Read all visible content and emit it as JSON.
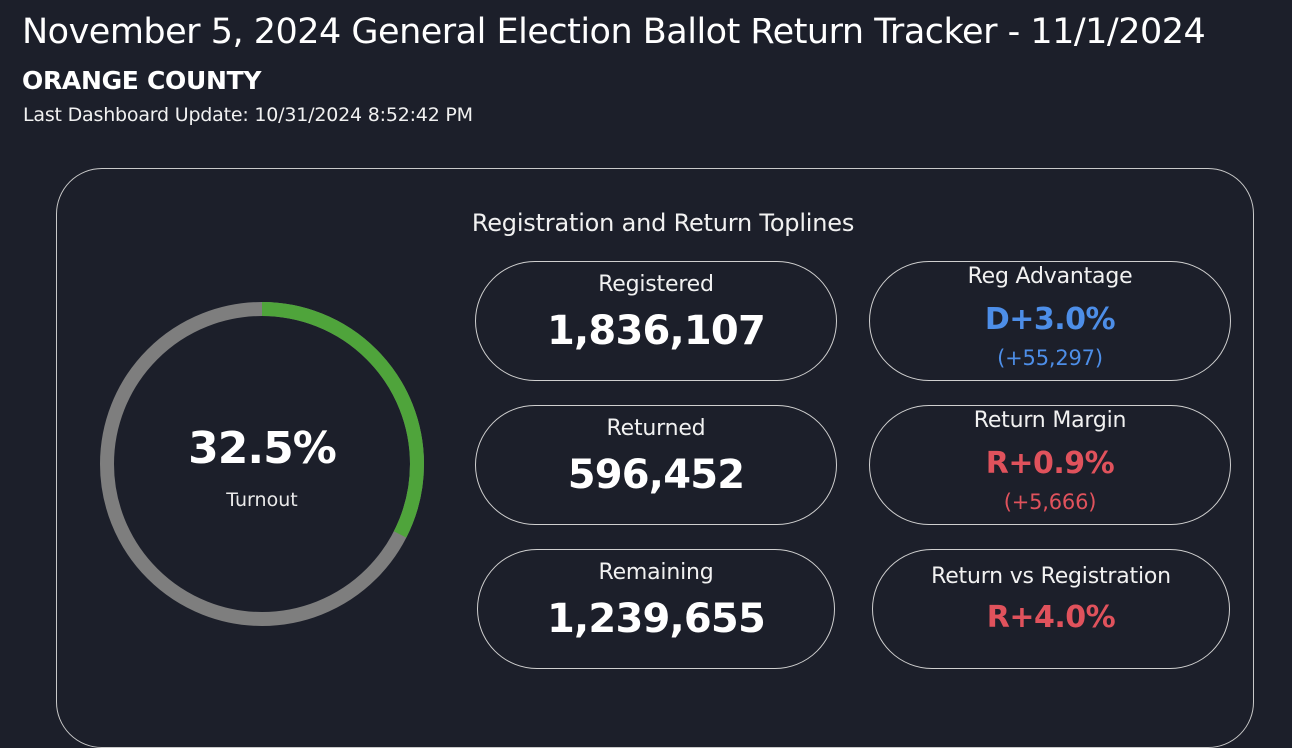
{
  "header": {
    "title": "November 5, 2024 General Election Ballot Return Tracker - 11/1/2024",
    "county": "ORANGE COUNTY",
    "last_update": "Last Dashboard Update: 10/31/2024 8:52:42 PM"
  },
  "toplines": {
    "section_title": "Registration and Return Toplines",
    "turnout": {
      "value": "32.5%",
      "label": "Turnout",
      "fraction": 0.325
    },
    "registered": {
      "label": "Registered",
      "value": "1,836,107"
    },
    "returned": {
      "label": "Returned",
      "value": "596,452"
    },
    "remaining": {
      "label": "Remaining",
      "value": "1,239,655"
    },
    "reg_advantage": {
      "label": "Reg Advantage",
      "value": "D+3.0%",
      "sub": "(+55,297)"
    },
    "return_margin": {
      "label": "Return Margin",
      "value": "R+0.9%",
      "sub": "(+5,666)"
    },
    "return_vs_registration": {
      "label": "Return vs Registration",
      "value": "R+4.0%"
    }
  },
  "colors": {
    "background": "#1c1f2a",
    "gauge_fill": "#4fa43b",
    "gauge_track": "#7e7e7e",
    "democrat_blue": "#4d8ee8",
    "republican_red": "#e0525c"
  }
}
